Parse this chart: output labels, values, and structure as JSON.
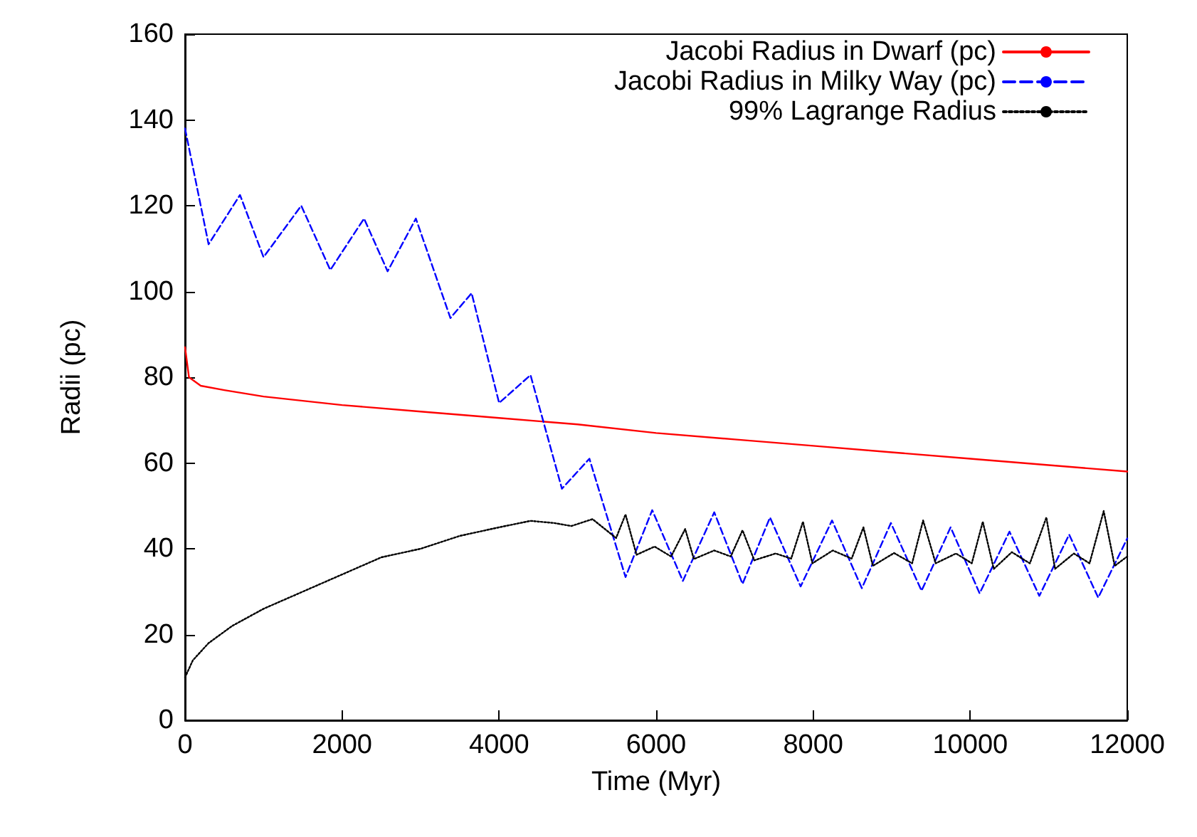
{
  "chart_data": {
    "type": "line",
    "xlabel": "Time (Myr)",
    "ylabel": "Radii (pc)",
    "xlim": [
      0,
      12000
    ],
    "xticks": [
      0,
      2000,
      4000,
      6000,
      8000,
      10000,
      12000
    ],
    "ylim": [
      0,
      160
    ],
    "yticks": [
      0,
      20,
      40,
      60,
      80,
      100,
      120,
      140,
      160
    ],
    "grid": false,
    "legend": "top right",
    "marker": "none",
    "series": [
      {
        "name": "Jacobi Radius in Dwarf (pc)",
        "color": "#ff0000",
        "line_style": "solid",
        "x": [
          0,
          50,
          200,
          500,
          1000,
          2000,
          3000,
          4000,
          5000,
          6000,
          7000,
          8000,
          9000,
          10000,
          11000,
          12000
        ],
        "values": [
          87,
          80,
          78,
          77,
          75.5,
          73.5,
          72,
          70.5,
          69,
          67,
          65.5,
          64,
          62.5,
          61,
          59.5,
          58
        ]
      },
      {
        "name": "Jacobi Radius in Milky Way (pc)",
        "color": "#0000ff",
        "line_style": "dashed",
        "x": [
          0,
          300,
          700,
          1000,
          1480,
          1850,
          2280,
          2580,
          2940,
          3380,
          3650,
          4000,
          4400,
          4800,
          5150,
          5610,
          5950,
          6340,
          6740,
          7100,
          7450,
          7840,
          8240,
          8620,
          8990,
          9380,
          9750,
          10120,
          10500,
          10880,
          11260,
          11630,
          12000
        ],
        "values": [
          138,
          111,
          122.5,
          108,
          120,
          105,
          117,
          104.7,
          117,
          93.8,
          99.6,
          74,
          80.5,
          54,
          61,
          33.4,
          49,
          32.5,
          48.5,
          31.8,
          47.3,
          31.2,
          46.6,
          30.8,
          46,
          30.2,
          45,
          29.6,
          44,
          29,
          43.3,
          28.6,
          42.4
        ]
      },
      {
        "name": "99% Lagrange Radius",
        "color": "#000000",
        "line_style": "dotted",
        "x": [
          0,
          100,
          300,
          600,
          1000,
          1500,
          2000,
          2500,
          3000,
          3500,
          4000,
          4400,
          4700,
          4920,
          5190,
          5490,
          5610,
          5750,
          5980,
          6190,
          6370,
          6480,
          6740,
          6950,
          7100,
          7250,
          7520,
          7720,
          7870,
          7990,
          8250,
          8490,
          8640,
          8760,
          9030,
          9260,
          9400,
          9560,
          9820,
          10020,
          10160,
          10300,
          10530,
          10760,
          10970,
          11080,
          11320,
          11520,
          11700,
          11840,
          12000
        ],
        "values": [
          10,
          14,
          18,
          22,
          26,
          30,
          34,
          38,
          40,
          43,
          45,
          46.5,
          46,
          45.3,
          46.9,
          42.5,
          48,
          38.6,
          40.5,
          38.2,
          44.6,
          37.6,
          39.6,
          38.2,
          44.3,
          37.3,
          38.9,
          37.7,
          46.3,
          36.6,
          39.6,
          37.7,
          45,
          36,
          39,
          36.6,
          46.6,
          36.6,
          38.9,
          36.6,
          46.3,
          35.3,
          39.2,
          36.6,
          47.3,
          35.3,
          38.9,
          36.6,
          48.8,
          36,
          38.2
        ]
      }
    ]
  }
}
